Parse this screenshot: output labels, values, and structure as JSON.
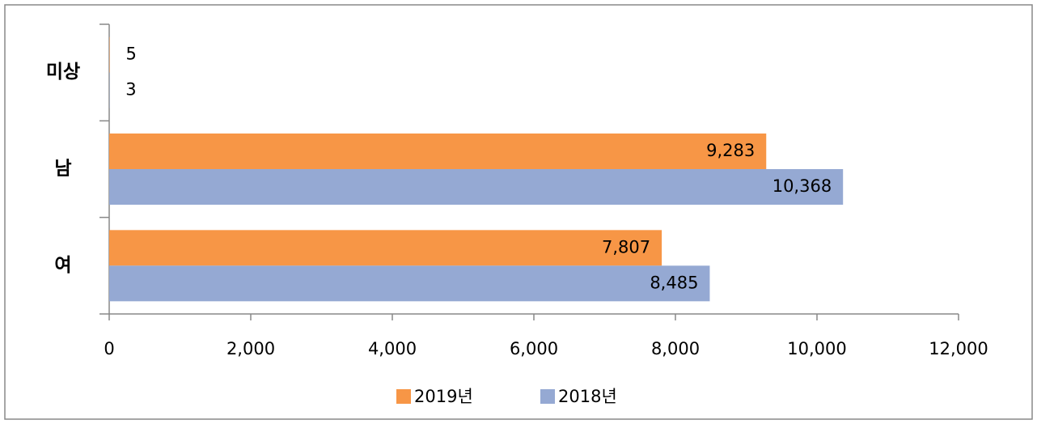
{
  "chart_data": {
    "type": "bar",
    "orientation": "horizontal",
    "categories": [
      "미상",
      "남",
      "여"
    ],
    "series": [
      {
        "name": "2019년",
        "color": "#f79646",
        "values": [
          5,
          9283,
          7807
        ],
        "value_labels": [
          "5",
          "9,283",
          "7,807"
        ]
      },
      {
        "name": "2018년",
        "color": "#95a9d3",
        "values": [
          3,
          10368,
          8485
        ],
        "value_labels": [
          "3",
          "10,368",
          "8,485"
        ]
      }
    ],
    "xlim": [
      0,
      12000
    ],
    "xticks": [
      0,
      {
        "value": 2000,
        "label": "2,000"
      },
      {
        "value": 4000,
        "label": "4,000"
      },
      {
        "value": 6000,
        "label": "6,000"
      },
      {
        "value": 8000,
        "label": "8,000"
      },
      {
        "value": 10000,
        "label": "10,000"
      },
      {
        "value": 12000,
        "label": "12,000"
      }
    ],
    "legend": "bottom"
  }
}
